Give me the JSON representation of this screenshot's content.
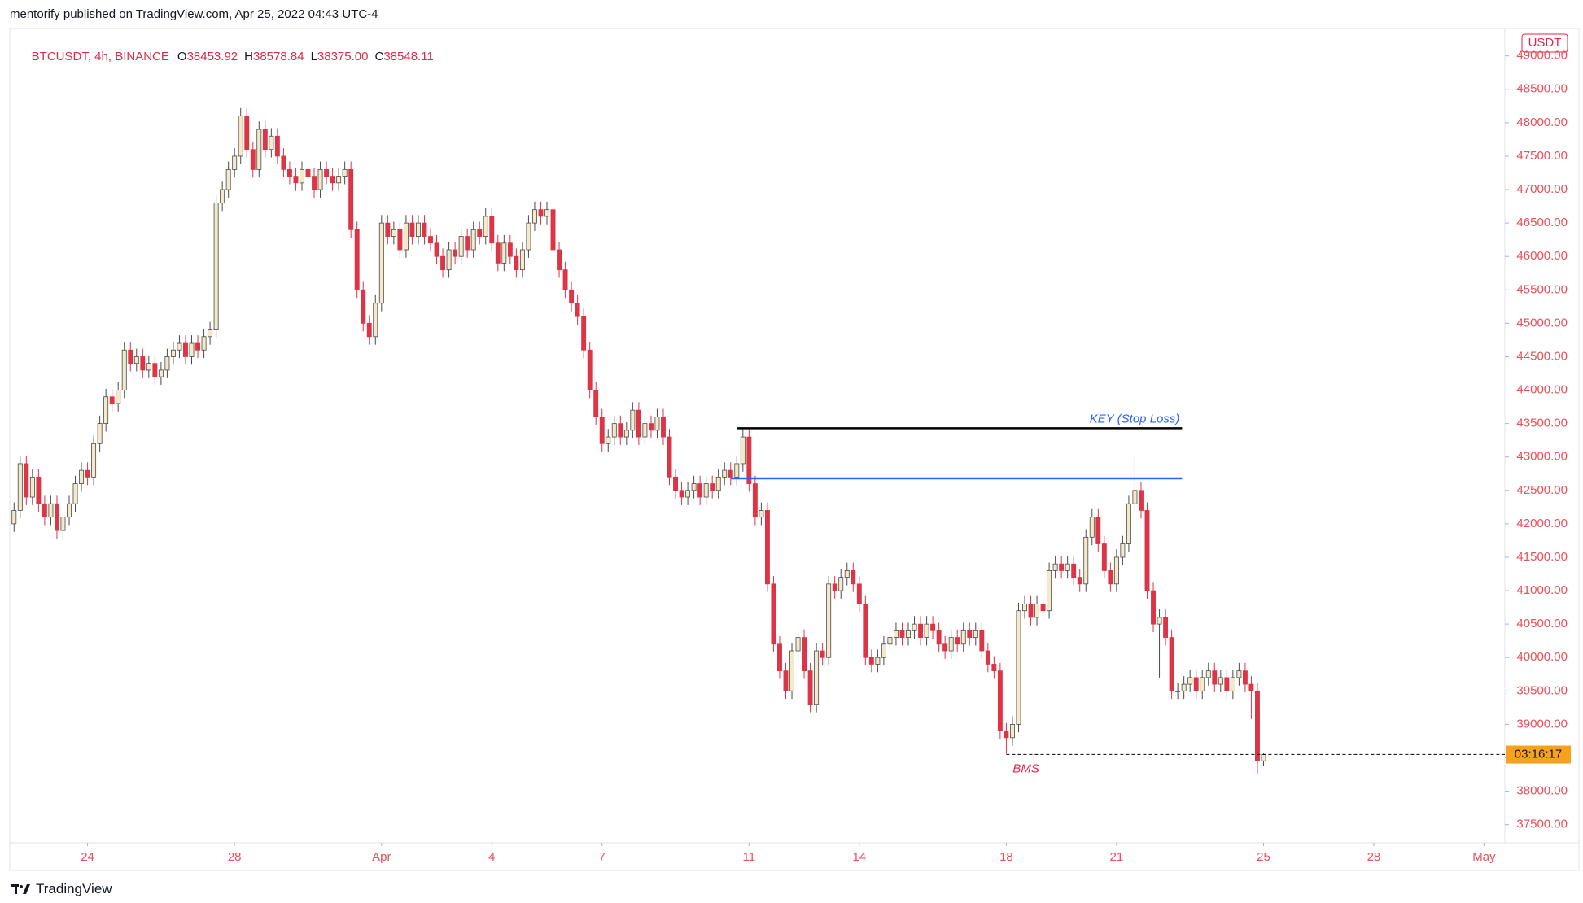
{
  "header": {
    "text": "mentorify published on TradingView.com, Apr 25, 2022 04:43 UTC-4"
  },
  "chart_data": {
    "type": "candlestick",
    "symbol": "BTCUSDT, 4h, BINANCE",
    "ohlc_labels": [
      "O",
      "H",
      "L",
      "C"
    ],
    "last_labels": [
      "38453.92",
      "38578.84",
      "38375.00",
      "38548.11"
    ],
    "currency": "USDT",
    "countdown": "03:16:17",
    "countdown_color": "#f7a21b",
    "up_color": "#f4e9c9",
    "down_color": "#dc3546",
    "xlim": [
      -0.7,
      243.4
    ],
    "ylim": [
      37228,
      49410
    ],
    "xticks": [
      {
        "value": 12,
        "label": "24"
      },
      {
        "value": 36,
        "label": "28"
      },
      {
        "value": 60,
        "label": "Apr"
      },
      {
        "value": 78,
        "label": "4"
      },
      {
        "value": 96,
        "label": "7"
      },
      {
        "value": 120,
        "label": "11"
      },
      {
        "value": 138,
        "label": "14"
      },
      {
        "value": 162,
        "label": "18"
      },
      {
        "value": 180,
        "label": "21"
      },
      {
        "value": 204,
        "label": "25"
      },
      {
        "value": 222,
        "label": "28"
      },
      {
        "value": 240,
        "label": "May"
      }
    ],
    "yticks": [
      {
        "value": 37500,
        "label": "37500.00"
      },
      {
        "value": 38000,
        "label": "38000.00"
      },
      {
        "value": 38500,
        "label": "38500.00"
      },
      {
        "value": 39000,
        "label": "39000.00"
      },
      {
        "value": 39500,
        "label": "39500.00"
      },
      {
        "value": 40000,
        "label": "40000.00"
      },
      {
        "value": 40500,
        "label": "40500.00"
      },
      {
        "value": 41000,
        "label": "41000.00"
      },
      {
        "value": 41500,
        "label": "41500.00"
      },
      {
        "value": 42000,
        "label": "42000.00"
      },
      {
        "value": 42500,
        "label": "42500.00"
      },
      {
        "value": 43000,
        "label": "43000.00"
      },
      {
        "value": 43500,
        "label": "43500.00"
      },
      {
        "value": 44000,
        "label": "44000.00"
      },
      {
        "value": 44500,
        "label": "44500.00"
      },
      {
        "value": 45000,
        "label": "45000.00"
      },
      {
        "value": 45500,
        "label": "45500.00"
      },
      {
        "value": 46000,
        "label": "46000.00"
      },
      {
        "value": 46500,
        "label": "46500.00"
      },
      {
        "value": 47000,
        "label": "47000.00"
      },
      {
        "value": 47500,
        "label": "47500.00"
      },
      {
        "value": 48000,
        "label": "48000.00"
      },
      {
        "value": 48500,
        "label": "48500.00"
      },
      {
        "value": 49000,
        "label": "49000.00"
      }
    ],
    "lines": [
      {
        "value": 43430,
        "x": [
          118,
          190.7
        ],
        "color": "#000000",
        "label": "KEY  (Stop Loss)",
        "label_color": "#2962ff",
        "label_position": "above-right"
      },
      {
        "value": 42680,
        "x": [
          117,
          190.7
        ],
        "color": "#2962ff"
      },
      {
        "value": 38550,
        "x": [
          162,
          243.4
        ],
        "color": "#000000",
        "dashed": true,
        "label": "BMS",
        "label_color": "#e0284a",
        "label_position": "below-left"
      }
    ],
    "ohlc": [
      [
        42000,
        42320,
        41880,
        42200
      ],
      [
        42200,
        43020,
        42080,
        42900
      ],
      [
        42900,
        43020,
        42280,
        42400
      ],
      [
        42400,
        42820,
        42280,
        42700
      ],
      [
        42700,
        42820,
        42180,
        42300
      ],
      [
        42300,
        42420,
        41980,
        42100
      ],
      [
        42100,
        42420,
        41980,
        42300
      ],
      [
        42300,
        42420,
        41780,
        41900
      ],
      [
        41900,
        42220,
        41780,
        42100
      ],
      [
        42100,
        42420,
        41980,
        42300
      ],
      [
        42300,
        42720,
        42180,
        42600
      ],
      [
        42600,
        42920,
        42480,
        42800
      ],
      [
        42800,
        42920,
        42580,
        42700
      ],
      [
        42700,
        43320,
        42580,
        43200
      ],
      [
        43200,
        43620,
        43080,
        43500
      ],
      [
        43500,
        44020,
        43380,
        43900
      ],
      [
        43900,
        44020,
        43680,
        43800
      ],
      [
        43800,
        44120,
        43680,
        44000
      ],
      [
        44000,
        44720,
        43880,
        44600
      ],
      [
        44600,
        44720,
        44280,
        44400
      ],
      [
        44400,
        44620,
        44280,
        44500
      ],
      [
        44500,
        44620,
        44180,
        44300
      ],
      [
        44300,
        44520,
        44180,
        44400
      ],
      [
        44400,
        44520,
        44080,
        44200
      ],
      [
        44200,
        44420,
        44080,
        44300
      ],
      [
        44300,
        44620,
        44180,
        44500
      ],
      [
        44500,
        44720,
        44380,
        44600
      ],
      [
        44600,
        44820,
        44480,
        44700
      ],
      [
        44700,
        44820,
        44380,
        44500
      ],
      [
        44500,
        44820,
        44380,
        44700
      ],
      [
        44700,
        44820,
        44480,
        44600
      ],
      [
        44600,
        44920,
        44480,
        44800
      ],
      [
        44800,
        45020,
        44680,
        44900
      ],
      [
        44900,
        46920,
        44780,
        46800
      ],
      [
        46800,
        47120,
        46680,
        47000
      ],
      [
        47000,
        47420,
        46880,
        47300
      ],
      [
        47300,
        47620,
        47180,
        47500
      ],
      [
        47500,
        48220,
        47380,
        48100
      ],
      [
        48100,
        48220,
        47480,
        47600
      ],
      [
        47600,
        47720,
        47180,
        47300
      ],
      [
        47300,
        48020,
        47180,
        47900
      ],
      [
        47900,
        48020,
        47480,
        47600
      ],
      [
        47600,
        47920,
        47480,
        47800
      ],
      [
        47800,
        47920,
        47380,
        47500
      ],
      [
        47500,
        47620,
        47180,
        47300
      ],
      [
        47300,
        47420,
        47080,
        47200
      ],
      [
        47200,
        47320,
        46980,
        47100
      ],
      [
        47100,
        47420,
        46980,
        47300
      ],
      [
        47300,
        47420,
        47080,
        47200
      ],
      [
        47200,
        47320,
        46880,
        47000
      ],
      [
        47000,
        47420,
        46880,
        47300
      ],
      [
        47300,
        47420,
        47080,
        47200
      ],
      [
        47200,
        47320,
        46980,
        47100
      ],
      [
        47100,
        47320,
        46980,
        47200
      ],
      [
        47200,
        47420,
        47080,
        47300
      ],
      [
        47300,
        47420,
        46280,
        46400
      ],
      [
        46400,
        46520,
        45380,
        45500
      ],
      [
        45500,
        45620,
        44880,
        45000
      ],
      [
        45000,
        45120,
        44680,
        44800
      ],
      [
        44800,
        45420,
        44680,
        45300
      ],
      [
        45300,
        46620,
        45180,
        46500
      ],
      [
        46500,
        46620,
        46180,
        46300
      ],
      [
        46300,
        46520,
        46180,
        46400
      ],
      [
        46400,
        46520,
        45980,
        46100
      ],
      [
        46100,
        46620,
        45980,
        46500
      ],
      [
        46500,
        46620,
        46180,
        46300
      ],
      [
        46300,
        46620,
        46180,
        46500
      ],
      [
        46500,
        46620,
        46180,
        46300
      ],
      [
        46300,
        46420,
        46080,
        46200
      ],
      [
        46200,
        46320,
        45880,
        46000
      ],
      [
        46000,
        46120,
        45680,
        45800
      ],
      [
        45800,
        46220,
        45680,
        46100
      ],
      [
        46100,
        46220,
        45880,
        46000
      ],
      [
        46000,
        46420,
        45880,
        46300
      ],
      [
        46300,
        46420,
        45980,
        46100
      ],
      [
        46100,
        46520,
        45980,
        46400
      ],
      [
        46400,
        46520,
        46180,
        46300
      ],
      [
        46300,
        46720,
        46180,
        46600
      ],
      [
        46600,
        46720,
        46080,
        46200
      ],
      [
        46200,
        46320,
        45780,
        45900
      ],
      [
        45900,
        46320,
        45780,
        46200
      ],
      [
        46200,
        46320,
        45880,
        46000
      ],
      [
        46000,
        46120,
        45680,
        45800
      ],
      [
        45800,
        46220,
        45680,
        46100
      ],
      [
        46100,
        46620,
        45980,
        46500
      ],
      [
        46500,
        46820,
        46380,
        46700
      ],
      [
        46700,
        46820,
        46480,
        46600
      ],
      [
        46600,
        46820,
        46480,
        46700
      ],
      [
        46700,
        46820,
        45980,
        46100
      ],
      [
        46100,
        46220,
        45680,
        45800
      ],
      [
        45800,
        45920,
        45380,
        45500
      ],
      [
        45500,
        45620,
        45180,
        45300
      ],
      [
        45300,
        45420,
        44980,
        45100
      ],
      [
        45100,
        45220,
        44480,
        44600
      ],
      [
        44600,
        44720,
        43880,
        44000
      ],
      [
        44000,
        44120,
        43480,
        43600
      ],
      [
        43600,
        43720,
        43080,
        43200
      ],
      [
        43200,
        43420,
        43080,
        43300
      ],
      [
        43300,
        43620,
        43180,
        43500
      ],
      [
        43500,
        43620,
        43180,
        43300
      ],
      [
        43300,
        43520,
        43180,
        43400
      ],
      [
        43400,
        43820,
        43280,
        43700
      ],
      [
        43700,
        43820,
        43180,
        43300
      ],
      [
        43300,
        43620,
        43180,
        43500
      ],
      [
        43500,
        43620,
        43280,
        43400
      ],
      [
        43400,
        43720,
        43280,
        43600
      ],
      [
        43600,
        43720,
        43180,
        43300
      ],
      [
        43300,
        43420,
        42580,
        42700
      ],
      [
        42700,
        42820,
        42380,
        42500
      ],
      [
        42500,
        42620,
        42280,
        42400
      ],
      [
        42400,
        42620,
        42280,
        42500
      ],
      [
        42500,
        42720,
        42380,
        42600
      ],
      [
        42600,
        42720,
        42280,
        42400
      ],
      [
        42400,
        42720,
        42280,
        42600
      ],
      [
        42600,
        42720,
        42380,
        42500
      ],
      [
        42500,
        42820,
        42380,
        42700
      ],
      [
        42700,
        42920,
        42580,
        42800
      ],
      [
        42800,
        42920,
        42580,
        42700
      ],
      [
        42700,
        43020,
        42580,
        42900
      ],
      [
        42900,
        43420,
        42780,
        43300
      ],
      [
        43300,
        43420,
        42480,
        42600
      ],
      [
        42600,
        42720,
        41980,
        42100
      ],
      [
        42100,
        42320,
        41980,
        42200
      ],
      [
        42200,
        42320,
        40980,
        41100
      ],
      [
        41100,
        41220,
        40080,
        40200
      ],
      [
        40200,
        40320,
        39680,
        39800
      ],
      [
        39800,
        39920,
        39380,
        39500
      ],
      [
        39500,
        40220,
        39380,
        40100
      ],
      [
        40100,
        40420,
        39980,
        40300
      ],
      [
        40300,
        40420,
        39680,
        39800
      ],
      [
        39800,
        39920,
        39180,
        39300
      ],
      [
        39300,
        40220,
        39180,
        40100
      ],
      [
        40100,
        40220,
        39880,
        40000
      ],
      [
        40000,
        41220,
        39880,
        41100
      ],
      [
        41100,
        41220,
        40880,
        41000
      ],
      [
        41000,
        41320,
        40880,
        41200
      ],
      [
        41200,
        41420,
        41080,
        41300
      ],
      [
        41300,
        41420,
        40980,
        41100
      ],
      [
        41100,
        41220,
        40680,
        40800
      ],
      [
        40800,
        40920,
        39880,
        40000
      ],
      [
        40000,
        40120,
        39780,
        39900
      ],
      [
        39900,
        40120,
        39780,
        40000
      ],
      [
        40000,
        40320,
        39880,
        40200
      ],
      [
        40200,
        40420,
        40080,
        40300
      ],
      [
        40300,
        40520,
        40180,
        40400
      ],
      [
        40400,
        40520,
        40180,
        40300
      ],
      [
        40300,
        40520,
        40180,
        40400
      ],
      [
        40400,
        40620,
        40280,
        40500
      ],
      [
        40500,
        40620,
        40180,
        40300
      ],
      [
        40300,
        40620,
        40180,
        40500
      ],
      [
        40500,
        40620,
        40280,
        40400
      ],
      [
        40400,
        40520,
        40080,
        40200
      ],
      [
        40200,
        40320,
        39980,
        40100
      ],
      [
        40100,
        40420,
        39980,
        40300
      ],
      [
        40300,
        40420,
        40080,
        40200
      ],
      [
        40200,
        40520,
        40080,
        40400
      ],
      [
        40400,
        40520,
        40180,
        40300
      ],
      [
        40300,
        40520,
        40180,
        40400
      ],
      [
        40400,
        40520,
        39980,
        40100
      ],
      [
        40100,
        40220,
        39780,
        39900
      ],
      [
        39900,
        40020,
        39680,
        39800
      ],
      [
        39800,
        39920,
        38780,
        38900
      ],
      [
        38900,
        39020,
        38560,
        38800
      ],
      [
        38800,
        39120,
        38680,
        39000
      ],
      [
        39000,
        40820,
        38880,
        40700
      ],
      [
        40700,
        40920,
        40580,
        40800
      ],
      [
        40800,
        40920,
        40480,
        40600
      ],
      [
        40600,
        40920,
        40480,
        40800
      ],
      [
        40800,
        40920,
        40580,
        40700
      ],
      [
        40700,
        41420,
        40580,
        41300
      ],
      [
        41300,
        41520,
        41180,
        41400
      ],
      [
        41400,
        41520,
        41180,
        41300
      ],
      [
        41300,
        41520,
        41180,
        41400
      ],
      [
        41400,
        41520,
        41080,
        41200
      ],
      [
        41200,
        41320,
        40980,
        41100
      ],
      [
        41100,
        41920,
        40980,
        41800
      ],
      [
        41800,
        42220,
        41680,
        42100
      ],
      [
        42100,
        42220,
        41580,
        41700
      ],
      [
        41700,
        41820,
        41180,
        41300
      ],
      [
        41300,
        41420,
        40980,
        41100
      ],
      [
        41100,
        41620,
        40980,
        41500
      ],
      [
        41500,
        41820,
        41380,
        41700
      ],
      [
        41700,
        42420,
        41580,
        42300
      ],
      [
        42300,
        43000,
        42180,
        42500
      ],
      [
        42500,
        42620,
        42080,
        42200
      ],
      [
        42200,
        42320,
        40880,
        41000
      ],
      [
        41000,
        41120,
        40380,
        40500
      ],
      [
        40500,
        40720,
        39700,
        40600
      ],
      [
        40600,
        40720,
        40180,
        40300
      ],
      [
        40300,
        40420,
        39380,
        39500
      ],
      [
        39500,
        39620,
        39380,
        39500
      ],
      [
        39500,
        39720,
        39380,
        39600
      ],
      [
        39600,
        39820,
        39480,
        39700
      ],
      [
        39700,
        39820,
        39380,
        39500
      ],
      [
        39500,
        39820,
        39380,
        39700
      ],
      [
        39700,
        39920,
        39580,
        39800
      ],
      [
        39800,
        39920,
        39480,
        39600
      ],
      [
        39600,
        39820,
        39480,
        39700
      ],
      [
        39700,
        39820,
        39380,
        39500
      ],
      [
        39500,
        39820,
        39380,
        39700
      ],
      [
        39700,
        39920,
        39580,
        39800
      ],
      [
        39800,
        39920,
        39480,
        39600
      ],
      [
        39600,
        39720,
        39080,
        39500
      ],
      [
        39500,
        39620,
        38250,
        38450
      ],
      [
        38453.92,
        38578.84,
        38375,
        38548.11
      ]
    ]
  },
  "footer": {
    "brand": "TradingView"
  }
}
